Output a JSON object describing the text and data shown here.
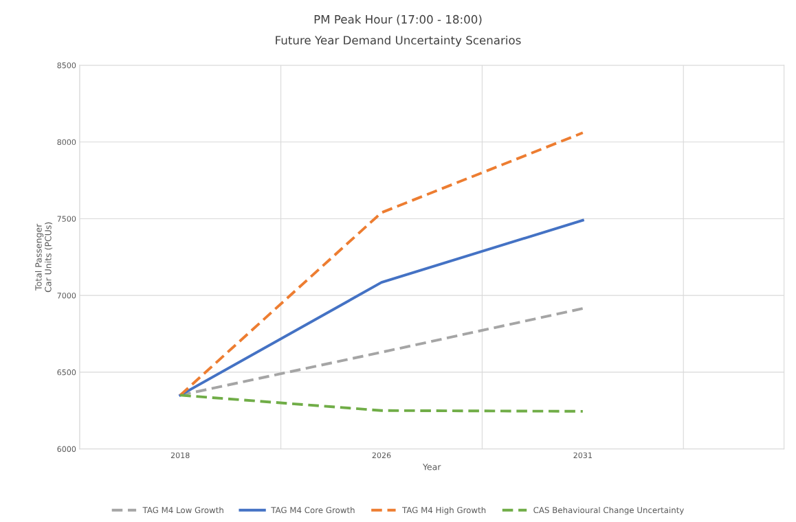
{
  "chart_data": {
    "type": "line",
    "title": "PM Peak Hour (17:00 - 18:00)",
    "subtitle": "Future Year Demand Uncertainty Scenarios",
    "xlabel": "Year",
    "ylabel": "Total Passenger\nCar Units (PCUs)",
    "categories": [
      "2018",
      "2026",
      "2031"
    ],
    "series": [
      {
        "name": "TAG M4 Low Growth",
        "color": "#a5a5a5",
        "line_style": "dashed",
        "values": [
          6350,
          6630,
          6915
        ]
      },
      {
        "name": "TAG M4 Core Growth",
        "color": "#4472c4",
        "line_style": "solid",
        "values": [
          6350,
          7085,
          7490
        ]
      },
      {
        "name": "TAG M4 High Growth",
        "color": "#ed7d31",
        "line_style": "dashed",
        "values": [
          6350,
          7540,
          8060
        ]
      },
      {
        "name": "CAS Behavioural Change Uncertainty",
        "color": "#70ad47",
        "line_style": "dashed",
        "values": [
          6350,
          6250,
          6245
        ]
      }
    ],
    "ylim": [
      6000,
      8500
    ],
    "yticks": [
      6000,
      6500,
      7000,
      7500,
      8000,
      8500
    ],
    "grid": true,
    "legend": "bottom",
    "marker": "none"
  }
}
